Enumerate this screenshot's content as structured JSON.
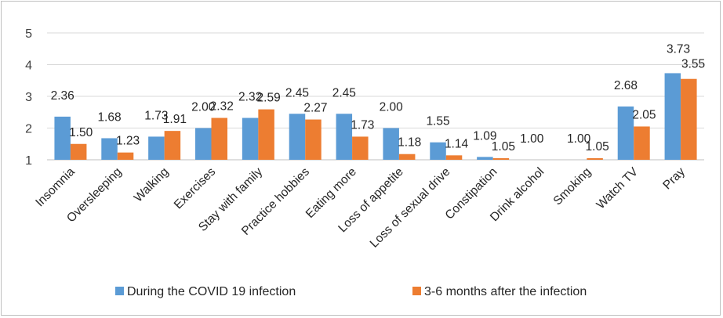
{
  "chart_data": {
    "type": "bar",
    "categories": [
      "Insomnia",
      "Oversleeping",
      "Walking",
      "Exercises",
      "Stay with  family",
      "Practice hobbies",
      "Eating more",
      "Loss of appetite",
      "Loss of sexual drive",
      "Constipation",
      "Drink alcohol",
      "Smoking",
      "Watch TV",
      "Pray"
    ],
    "series": [
      {
        "name": "During the COVID 19 infection",
        "color": "#5b9bd5",
        "values": [
          2.36,
          1.68,
          1.73,
          2.0,
          2.32,
          2.45,
          2.45,
          2.0,
          1.55,
          1.09,
          1.0,
          1.0,
          2.68,
          3.73
        ],
        "labels": [
          "2.36",
          "1.68",
          "1.73",
          "2.00",
          "2.32",
          "2.45",
          "2.45",
          "2.00",
          "1.55",
          "1.09",
          "1.00",
          "1.00",
          "2.68",
          "3.73"
        ]
      },
      {
        "name": "3-6 months after the infection",
        "color": "#ed7d31",
        "values": [
          1.5,
          1.23,
          1.91,
          2.32,
          2.59,
          2.27,
          1.73,
          1.18,
          1.14,
          1.05,
          1.0,
          1.05,
          2.05,
          3.55
        ],
        "labels": [
          "1.50",
          "1.23",
          "1.91",
          "2.32",
          "2.59",
          "2.27",
          "1.73",
          "1.18",
          "1.14",
          "1.05",
          "",
          "1.05",
          "2.05",
          "3.55"
        ]
      }
    ],
    "y_ticks": [
      "1",
      "2",
      "3",
      "4",
      "5"
    ],
    "ylim": [
      1,
      5
    ],
    "grid": true,
    "legend": "bottom",
    "title": "",
    "xlabel": "",
    "ylabel": ""
  }
}
